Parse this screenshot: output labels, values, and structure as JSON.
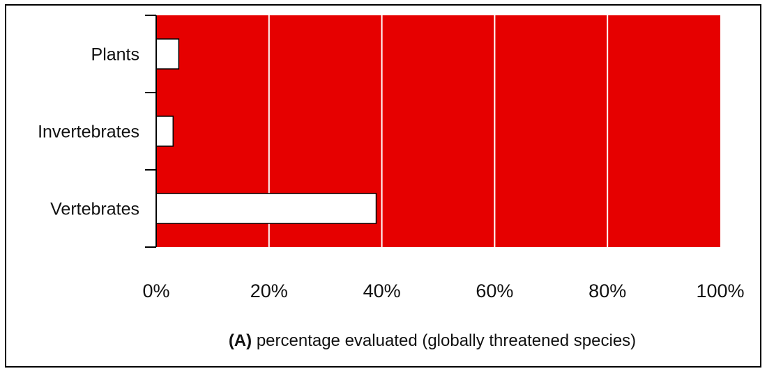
{
  "chart_data": {
    "type": "bar",
    "orientation": "horizontal",
    "categories": [
      "Plants",
      "Invertebrates",
      "Vertebrates"
    ],
    "values": [
      4,
      3,
      39
    ],
    "xlim": [
      0,
      100
    ],
    "xticks": [
      "0%",
      "20%",
      "40%",
      "60%",
      "80%",
      "100%"
    ],
    "xlabel_prefix": "(A)",
    "xlabel": "percentage evaluated (globally threatened species)",
    "grid": true,
    "colors": {
      "background": "#e60000",
      "bar": "#ffffff",
      "gridline": "#ffffff"
    }
  }
}
